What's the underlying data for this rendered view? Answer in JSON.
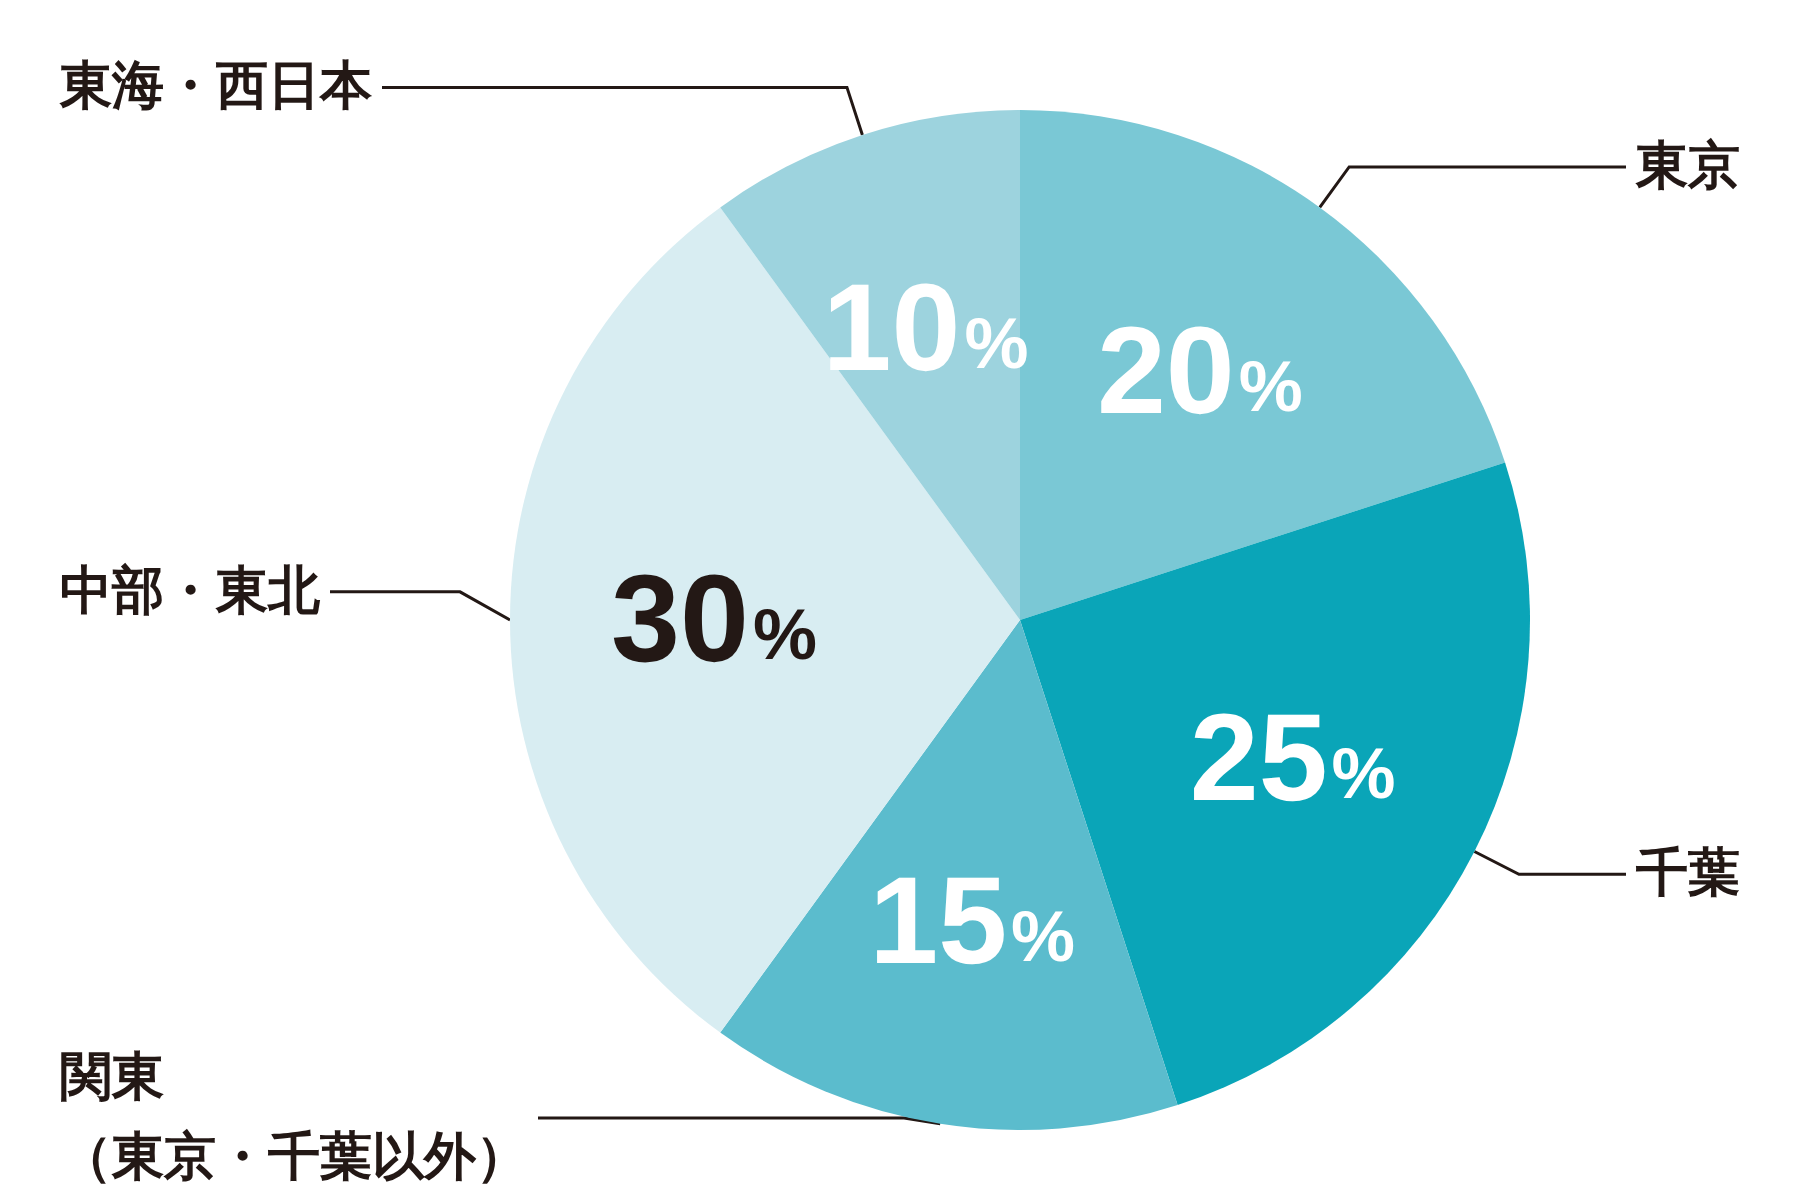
{
  "chart_data": {
    "type": "pie",
    "categories": [
      "東京",
      "千葉",
      "関東（東京・千葉以外）",
      "中部・東北",
      "東海・西日本"
    ],
    "values": [
      20,
      25,
      15,
      30,
      10
    ],
    "colors": [
      "#7ac8d5",
      "#0aa5b8",
      "#5bbccd",
      "#d8edf2",
      "#9dd3de"
    ],
    "value_labels": [
      "20%",
      "25%",
      "15%",
      "30%",
      "10%"
    ]
  }
}
